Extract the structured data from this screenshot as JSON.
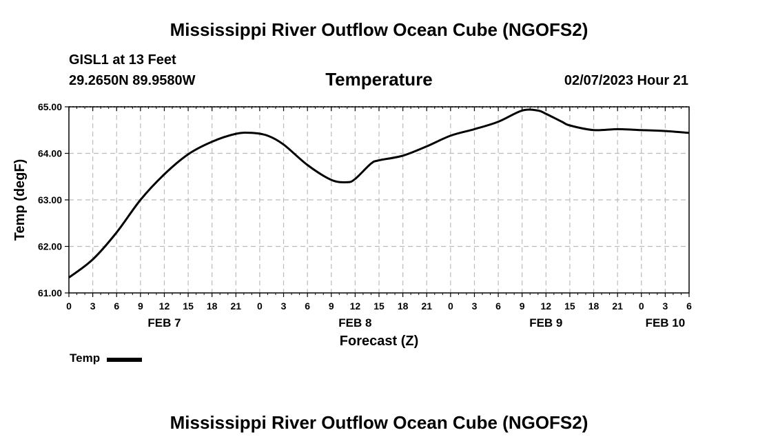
{
  "header": {
    "title": "Mississippi River Outflow Ocean Cube (NGOFS2)",
    "footer_title": "Mississippi River Outflow Ocean Cube (NGOFS2)",
    "station": "GISL1 at 13 Feet",
    "location": "29.2650N  89.9580W",
    "chart_title": "Temperature",
    "datetime": "02/07/2023 Hour 21"
  },
  "legend": {
    "label": "Temp"
  },
  "chart_data": {
    "type": "line",
    "title": "Temperature",
    "xlabel": "Forecast (Z)",
    "ylabel": "Temp (degF)",
    "xlim": [
      0,
      78
    ],
    "ylim": [
      61.0,
      65.0
    ],
    "yticks": [
      61.0,
      62.0,
      63.0,
      64.0,
      65.0
    ],
    "ytick_labels": [
      "61.00",
      "62.00",
      "63.00",
      "64.00",
      "65.00"
    ],
    "xticks": [
      0,
      3,
      6,
      9,
      12,
      15,
      18,
      21,
      24,
      27,
      30,
      33,
      36,
      39,
      42,
      45,
      48,
      51,
      54,
      57,
      60,
      63,
      66,
      69,
      72,
      75,
      78
    ],
    "xtick_labels": [
      "0",
      "3",
      "6",
      "9",
      "12",
      "15",
      "18",
      "21",
      "0",
      "3",
      "6",
      "9",
      "12",
      "15",
      "18",
      "21",
      "0",
      "3",
      "6",
      "9",
      "12",
      "15",
      "18",
      "21",
      "0",
      "3",
      "6"
    ],
    "date_labels": [
      {
        "hour": 12,
        "label": "FEB 7"
      },
      {
        "hour": 36,
        "label": "FEB 8"
      },
      {
        "hour": 60,
        "label": "FEB 9"
      },
      {
        "hour": 75,
        "label": "FEB 10"
      }
    ],
    "grid": true,
    "series": [
      {
        "name": "Temp",
        "color": "#000000",
        "x": [
          0,
          3,
          6,
          9,
          12,
          15,
          18,
          21,
          23,
          25,
          27,
          30,
          33,
          35,
          36,
          38,
          39,
          42,
          45,
          48,
          51,
          54,
          57,
          59,
          60,
          62,
          63,
          66,
          69,
          72,
          75,
          78
        ],
        "y": [
          61.33,
          61.72,
          62.3,
          63.0,
          63.55,
          63.98,
          64.25,
          64.42,
          64.44,
          64.38,
          64.19,
          63.75,
          63.43,
          63.38,
          63.45,
          63.78,
          63.85,
          63.95,
          64.15,
          64.38,
          64.52,
          64.68,
          64.92,
          64.92,
          64.85,
          64.68,
          64.6,
          64.5,
          64.52,
          64.5,
          64.48,
          64.44
        ]
      }
    ]
  }
}
